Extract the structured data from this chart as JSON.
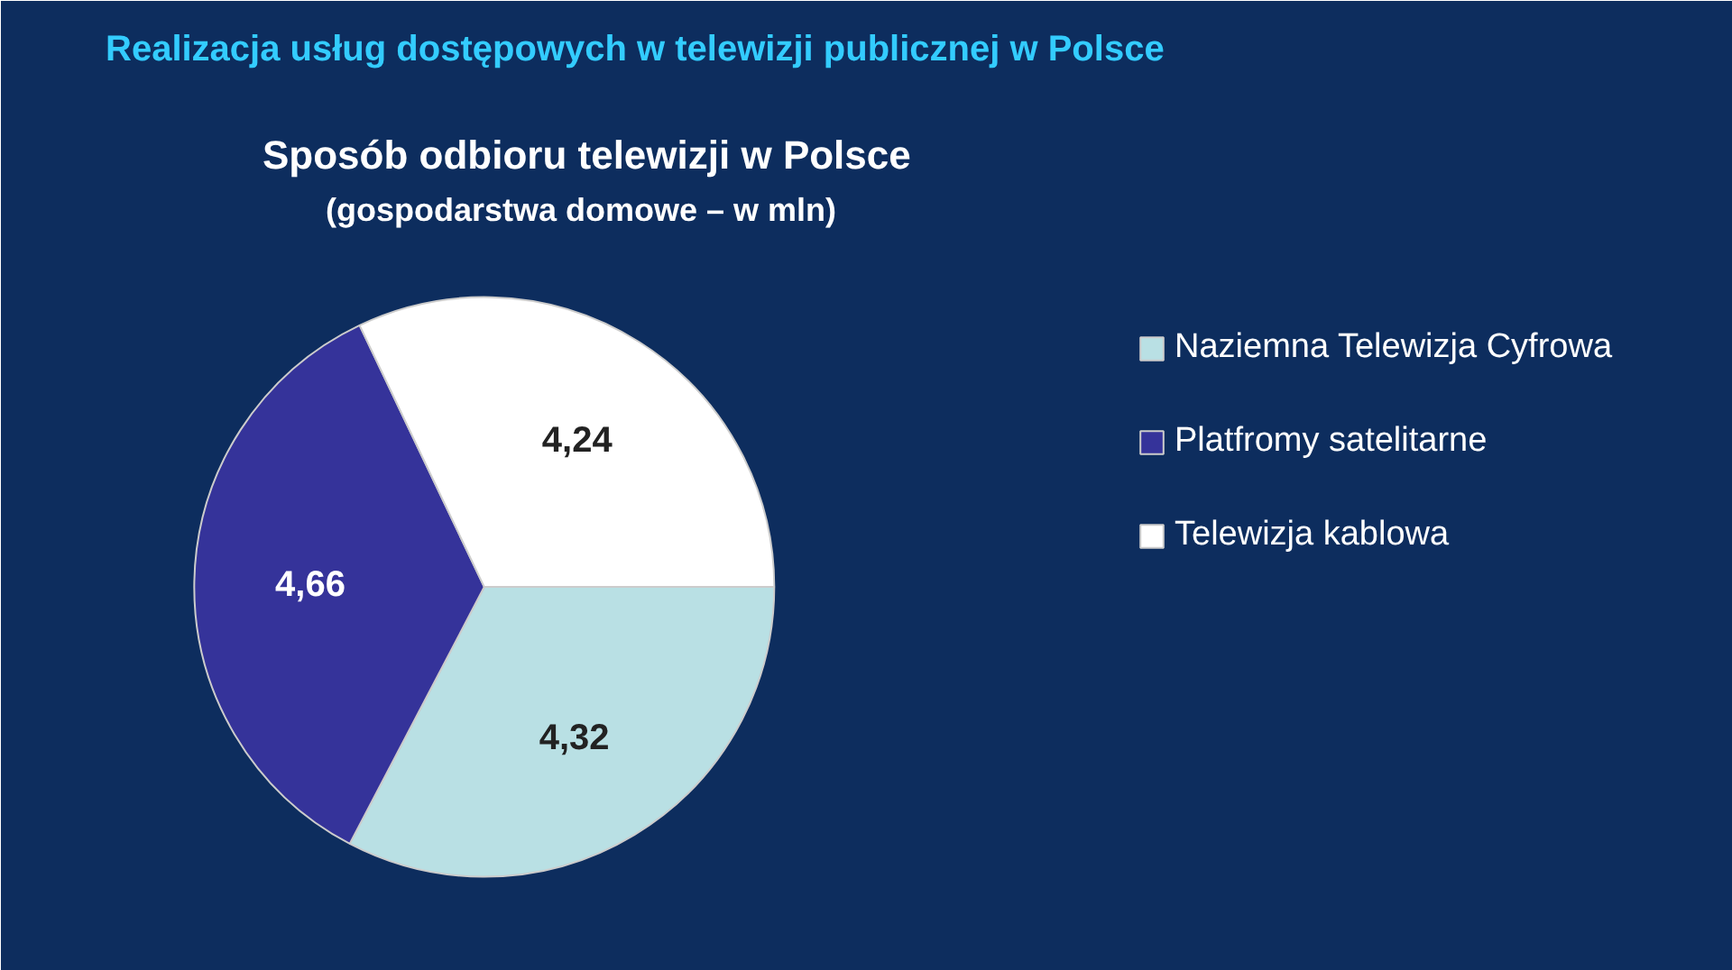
{
  "chart_data": {
    "type": "pie",
    "title": "Realizacja usług dostępowych w telewizji publicznej w Polsce",
    "subtitle": "Sposób odbioru telewizji w Polsce",
    "annotations": [
      "(gospodarstwa domowe – w mln)"
    ],
    "categories": [
      "Naziemna Telewizja Cyfrowa",
      "Platfromy satelitarne",
      "Telewizja kablowa"
    ],
    "values": [
      4.32,
      4.66,
      4.24
    ],
    "colors": [
      "#b9e0e4",
      "#35339a",
      "#ffffff"
    ],
    "value_labels": [
      "4,32",
      "4,66",
      "4,24"
    ],
    "legend": "right"
  }
}
